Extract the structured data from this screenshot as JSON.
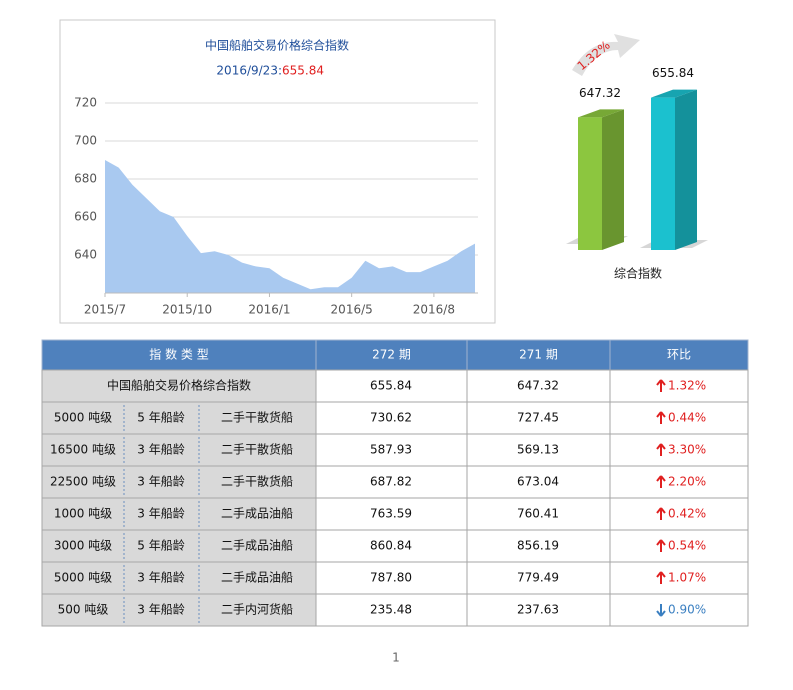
{
  "chart_data": [
    {
      "type": "area",
      "title": "中国船舶交易价格综合指数",
      "subtitle_date": "2016/9/23:",
      "subtitle_value": "655.84",
      "categories": [
        "2015/7",
        null,
        null,
        null,
        null,
        null,
        "2015/10",
        null,
        null,
        null,
        null,
        null,
        "2016/1",
        null,
        null,
        null,
        null,
        null,
        "2016/5",
        null,
        null,
        null,
        null,
        null,
        "2016/8",
        null,
        null,
        null
      ],
      "values": [
        690,
        686,
        677,
        670,
        663,
        660,
        650,
        641,
        642,
        640,
        636,
        634,
        633,
        628,
        625,
        622,
        623,
        623,
        628,
        637,
        633,
        634,
        631,
        631,
        634,
        637,
        642,
        646
      ],
      "color": "#a9c9f0",
      "ylim": [
        620,
        720
      ],
      "yticks": [
        640,
        660,
        680,
        700,
        720
      ],
      "grid": true
    },
    {
      "type": "bar3d",
      "annotation": "1.32%",
      "xlabel": "综合指数",
      "values": [
        647.32,
        655.84
      ],
      "value_labels": [
        "647.32",
        "655.84"
      ],
      "colors": [
        "#8cc63f",
        "#1bc1cf"
      ],
      "ylim": [
        590,
        660
      ]
    }
  ],
  "table": {
    "header": [
      "指 数 类 型",
      "272 期",
      "271 期",
      "环比"
    ],
    "rows": [
      {
        "type": [
          "中国船舶交易价格综合指数"
        ],
        "p272": "655.84",
        "p271": "647.32",
        "change": "1.32%",
        "direction": "up"
      },
      {
        "type": [
          "5000 吨级",
          "5 年船龄",
          "二手干散货船"
        ],
        "p272": "730.62",
        "p271": "727.45",
        "change": "0.44%",
        "direction": "up"
      },
      {
        "type": [
          "16500 吨级",
          "3 年船龄",
          "二手干散货船"
        ],
        "p272": "587.93",
        "p271": "569.13",
        "change": "3.30%",
        "direction": "up"
      },
      {
        "type": [
          "22500 吨级",
          "3 年船龄",
          "二手干散货船"
        ],
        "p272": "687.82",
        "p271": "673.04",
        "change": "2.20%",
        "direction": "up"
      },
      {
        "type": [
          "1000 吨级",
          "3 年船龄",
          "二手成品油船"
        ],
        "p272": "763.59",
        "p271": "760.41",
        "change": "0.42%",
        "direction": "up"
      },
      {
        "type": [
          "3000 吨级",
          "5 年船龄",
          "二手成品油船"
        ],
        "p272": "860.84",
        "p271": "856.19",
        "change": "0.54%",
        "direction": "up"
      },
      {
        "type": [
          "5000 吨级",
          "3 年船龄",
          "二手成品油船"
        ],
        "p272": "787.80",
        "p271": "779.49",
        "change": "1.07%",
        "direction": "up"
      },
      {
        "type": [
          "500 吨级",
          "3 年船龄",
          "二手内河货船"
        ],
        "p272": "235.48",
        "p271": "237.63",
        "change": "0.90%",
        "direction": "down"
      }
    ]
  },
  "page_number": "1"
}
